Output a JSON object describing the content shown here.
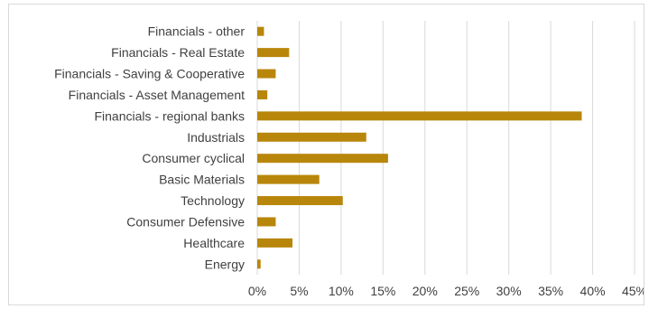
{
  "chart_data": {
    "type": "bar",
    "orientation": "horizontal",
    "categories": [
      "Financials - other",
      "Financials - Real Estate",
      "Financials - Saving & Cooperative",
      "Financials - Asset Management",
      "Financials - regional banks",
      "Industrials",
      "Consumer cyclical",
      "Basic Materials",
      "Technology",
      "Consumer Defensive",
      "Healthcare",
      "Energy"
    ],
    "values": [
      0.8,
      3.8,
      2.2,
      1.2,
      38.7,
      13.0,
      15.6,
      7.4,
      10.2,
      2.2,
      4.2,
      0.4
    ],
    "x_ticks": [
      "0%",
      "5%",
      "10%",
      "15%",
      "20%",
      "25%",
      "30%",
      "35%",
      "40%",
      "45%"
    ],
    "xlim": [
      0,
      45
    ],
    "grid": true,
    "bar_color": "#b8860b",
    "title": "",
    "xlabel": "",
    "ylabel": ""
  }
}
